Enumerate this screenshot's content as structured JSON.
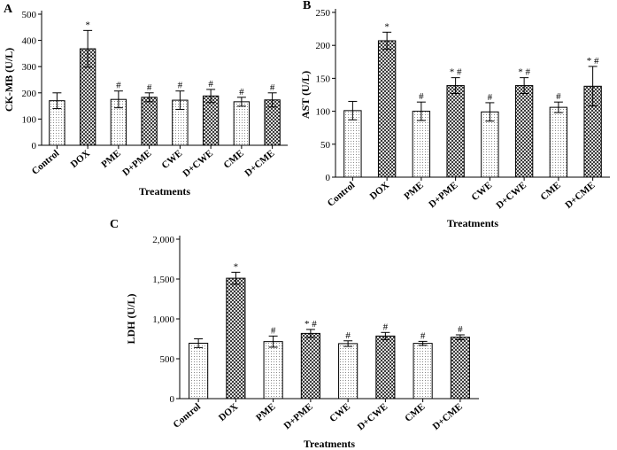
{
  "chart_data": [
    {
      "panel": "A",
      "type": "bar",
      "xlabel": "Treatments",
      "ylabel": "CK-MB (U/L)",
      "ylim": [
        0,
        500
      ],
      "yticks": [
        0,
        100,
        200,
        300,
        400,
        500
      ],
      "ytick_labels": [
        "0",
        "100",
        "200",
        "300",
        "400",
        "500"
      ],
      "categories": [
        "Control",
        "DOX",
        "PME",
        "D+PME",
        "CWE",
        "D+CWE",
        "CME",
        "D+CME"
      ],
      "values": [
        170,
        368,
        175,
        183,
        172,
        188,
        166,
        173
      ],
      "errors": [
        30,
        70,
        32,
        17,
        35,
        25,
        17,
        27
      ],
      "annotations": [
        "",
        "*",
        "#",
        "#",
        "#",
        "#",
        "#",
        "#"
      ],
      "patterns": [
        "dots",
        "checker",
        "dots",
        "checker",
        "dots",
        "checker",
        "dots",
        "checker"
      ],
      "grid": false
    },
    {
      "panel": "B",
      "type": "bar",
      "xlabel": "Treatments",
      "ylabel": "AST (U/L)",
      "ylim": [
        0,
        250
      ],
      "yticks": [
        0,
        50,
        100,
        150,
        200,
        250
      ],
      "ytick_labels": [
        "0",
        "50",
        "100",
        "150",
        "200",
        "250"
      ],
      "categories": [
        "Control",
        "DOX",
        "PME",
        "D+PME",
        "CWE",
        "D+CWE",
        "CME",
        "D+CME"
      ],
      "values": [
        101,
        207,
        100,
        139,
        99,
        139,
        106,
        138
      ],
      "errors": [
        14,
        13,
        14,
        12,
        14,
        12,
        8,
        30
      ],
      "annotations": [
        "",
        "*",
        "#",
        "* #",
        "#",
        "* #",
        "#",
        "* #"
      ],
      "patterns": [
        "dots",
        "checker",
        "dots",
        "checker",
        "dots",
        "checker",
        "dots",
        "checker"
      ],
      "grid": false
    },
    {
      "panel": "C",
      "type": "bar",
      "xlabel": "Treatments",
      "ylabel": "LDH (U/L)",
      "ylim": [
        0,
        2000
      ],
      "yticks": [
        0,
        500,
        1000,
        1500,
        2000
      ],
      "ytick_labels": [
        "0",
        "500",
        "1,000",
        "1,500",
        "2,000"
      ],
      "categories": [
        "Control",
        "DOX",
        "PME",
        "D+PME",
        "CWE",
        "D+CWE",
        "CME",
        "D+CME"
      ],
      "values": [
        695,
        1510,
        715,
        818,
        690,
        785,
        693,
        770
      ],
      "errors": [
        55,
        75,
        70,
        50,
        35,
        45,
        25,
        30
      ],
      "annotations": [
        "",
        "*",
        "#",
        "* #",
        "#",
        "#",
        "#",
        "#"
      ],
      "patterns": [
        "dots",
        "checker",
        "dots",
        "checker",
        "dots",
        "checker",
        "dots",
        "checker"
      ],
      "grid": false
    }
  ]
}
